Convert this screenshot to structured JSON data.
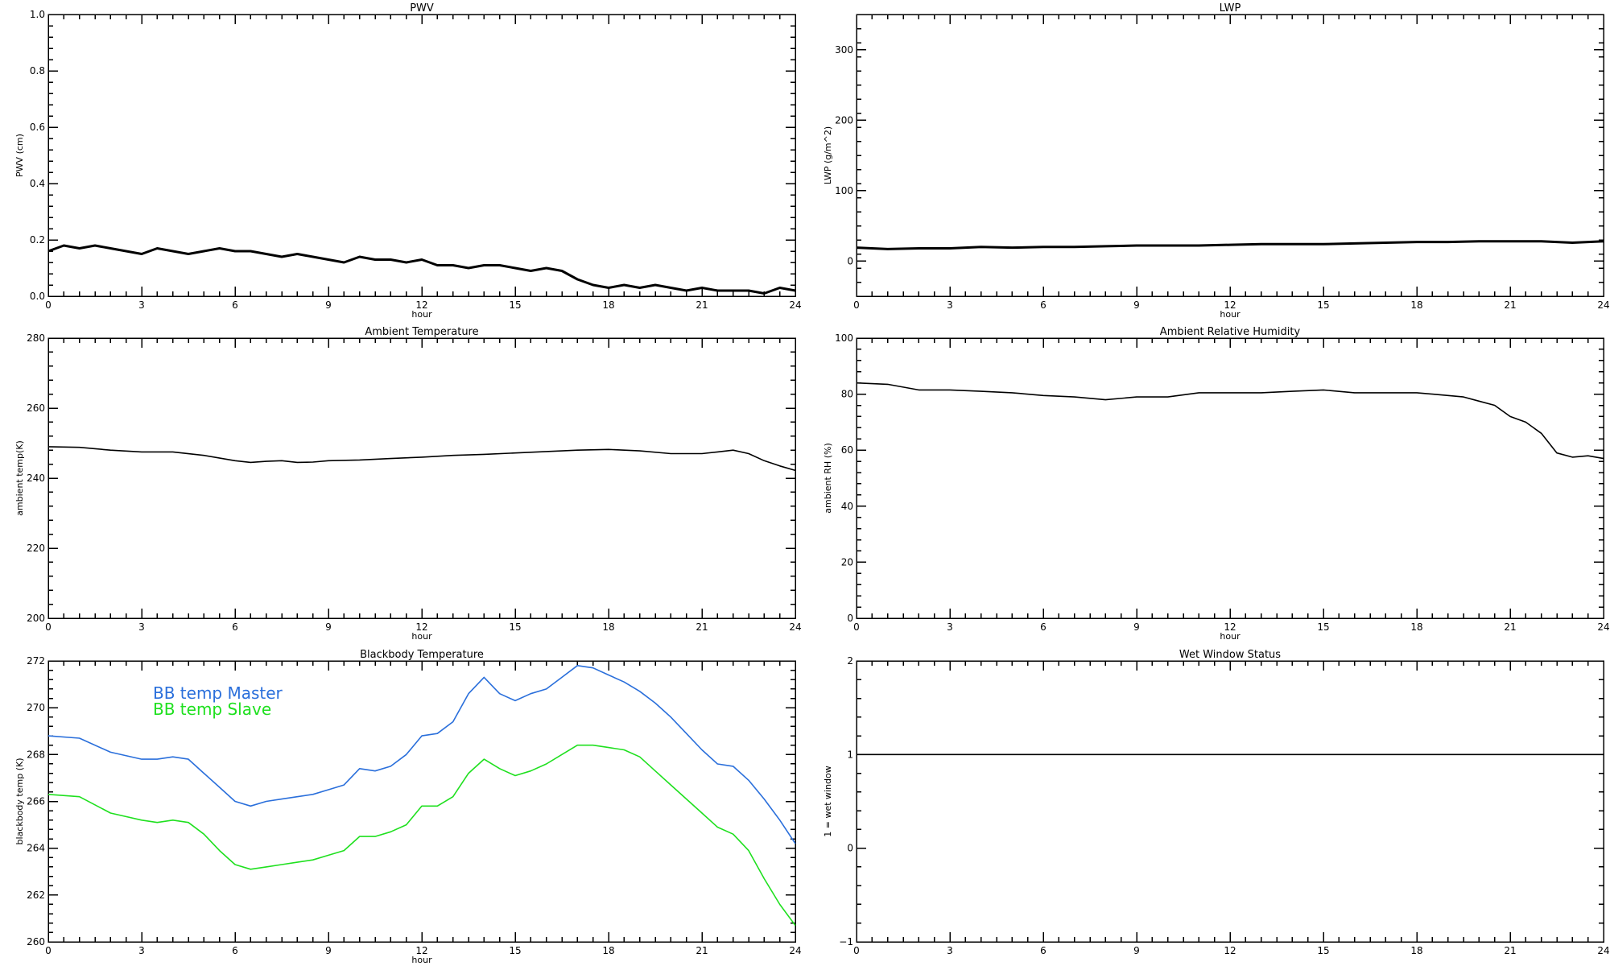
{
  "chart_data": [
    {
      "type": "line",
      "title": "PWV",
      "xlabel": "hour",
      "ylabel": "PWV (cm)",
      "xlim": [
        0,
        24
      ],
      "ylim": [
        0,
        1.0
      ],
      "xticks": [
        "0",
        "3",
        "6",
        "9",
        "12",
        "15",
        "18",
        "21",
        "24"
      ],
      "yticks": [
        "0.0",
        "0.2",
        "0.4",
        "0.6",
        "0.8",
        "1.0"
      ],
      "series": [
        {
          "color": "#000000",
          "x": [
            0,
            0.5,
            1,
            1.5,
            2,
            2.5,
            3,
            3.5,
            4,
            4.5,
            5,
            5.5,
            6,
            6.5,
            7,
            7.5,
            8,
            8.5,
            9,
            9.5,
            10,
            10.5,
            11,
            11.5,
            12,
            12.5,
            13,
            13.5,
            14,
            14.5,
            15,
            15.5,
            16,
            16.5,
            17,
            17.5,
            18,
            18.5,
            19,
            19.5,
            20,
            20.5,
            21,
            21.5,
            22,
            22.5,
            23,
            23.5,
            24
          ],
          "y": [
            0.16,
            0.18,
            0.17,
            0.18,
            0.17,
            0.16,
            0.15,
            0.17,
            0.16,
            0.15,
            0.16,
            0.17,
            0.16,
            0.16,
            0.15,
            0.14,
            0.15,
            0.14,
            0.13,
            0.12,
            0.14,
            0.13,
            0.13,
            0.12,
            0.13,
            0.11,
            0.11,
            0.1,
            0.11,
            0.11,
            0.1,
            0.09,
            0.1,
            0.09,
            0.06,
            0.04,
            0.03,
            0.04,
            0.03,
            0.04,
            0.03,
            0.02,
            0.03,
            0.02,
            0.02,
            0.02,
            0.01,
            0.03,
            0.02
          ]
        }
      ]
    },
    {
      "type": "line",
      "title": "LWP",
      "xlabel": "hour",
      "ylabel": "LWP (g/m^2)",
      "xlim": [
        0,
        24
      ],
      "ylim": [
        -50,
        350
      ],
      "xticks": [
        "0",
        "3",
        "6",
        "9",
        "12",
        "15",
        "18",
        "21",
        "24"
      ],
      "yticks": [
        "0",
        "100",
        "200",
        "300"
      ],
      "series": [
        {
          "color": "#000000",
          "x": [
            0,
            1,
            2,
            3,
            4,
            5,
            6,
            7,
            8,
            9,
            10,
            11,
            12,
            13,
            14,
            15,
            16,
            17,
            18,
            19,
            20,
            21,
            22,
            23,
            24
          ],
          "y": [
            19,
            17,
            18,
            18,
            20,
            19,
            20,
            20,
            21,
            22,
            22,
            22,
            23,
            24,
            24,
            24,
            25,
            26,
            27,
            27,
            28,
            28,
            28,
            26,
            28
          ]
        }
      ]
    },
    {
      "type": "line",
      "title": "Ambient Temperature",
      "xlabel": "hour",
      "ylabel": "ambient temp(K)",
      "xlim": [
        0,
        24
      ],
      "ylim": [
        200,
        280
      ],
      "xticks": [
        "0",
        "3",
        "6",
        "9",
        "12",
        "15",
        "18",
        "21",
        "24"
      ],
      "yticks": [
        "200",
        "220",
        "240",
        "260",
        "280"
      ],
      "series": [
        {
          "color": "#000000",
          "x": [
            0,
            1,
            2,
            3,
            4,
            5,
            6,
            6.5,
            7,
            7.5,
            8,
            8.5,
            9,
            10,
            11,
            12,
            13,
            14,
            15,
            16,
            17,
            18,
            19,
            20,
            21,
            21.5,
            22,
            22.5,
            23,
            23.5,
            24
          ],
          "y": [
            249,
            248.8,
            248,
            247.5,
            247.5,
            246.5,
            245,
            244.5,
            244.8,
            245,
            244.5,
            244.6,
            245,
            245.2,
            245.6,
            246,
            246.5,
            246.8,
            247.2,
            247.6,
            248,
            248.2,
            247.8,
            247,
            247,
            247.5,
            248,
            247,
            245,
            243.5,
            242.2
          ]
        }
      ]
    },
    {
      "type": "line",
      "title": "Ambient Relative Humidity",
      "xlabel": "hour",
      "ylabel": "ambient RH (%)",
      "xlim": [
        0,
        24
      ],
      "ylim": [
        0,
        100
      ],
      "xticks": [
        "0",
        "3",
        "6",
        "9",
        "12",
        "15",
        "18",
        "21",
        "24"
      ],
      "yticks": [
        "0",
        "20",
        "40",
        "60",
        "80",
        "100"
      ],
      "series": [
        {
          "color": "#000000",
          "x": [
            0,
            1,
            2,
            3,
            4,
            5,
            6,
            7,
            8,
            9,
            10,
            11,
            12,
            13,
            14,
            15,
            16,
            17,
            17.5,
            18,
            18.5,
            19,
            19.5,
            20,
            20.5,
            21,
            21.5,
            22,
            22.5,
            23,
            23.5,
            24
          ],
          "y": [
            84,
            83.5,
            81.5,
            81.5,
            81,
            80.5,
            79.5,
            79,
            78,
            79,
            79,
            80.5,
            80.5,
            80.5,
            81,
            81.5,
            80.5,
            80.5,
            80.5,
            80.5,
            80,
            79.5,
            79,
            77.5,
            76,
            72,
            70,
            66,
            59,
            57.5,
            58,
            57
          ]
        }
      ]
    },
    {
      "type": "line",
      "title": "Blackbody Temperature",
      "xlabel": "hour",
      "ylabel": "blackbody temp (K)",
      "xlim": [
        0,
        24
      ],
      "ylim": [
        260,
        272
      ],
      "xticks": [
        "0",
        "3",
        "6",
        "9",
        "12",
        "15",
        "18",
        "21",
        "24"
      ],
      "yticks": [
        "260",
        "262",
        "264",
        "266",
        "268",
        "270",
        "272"
      ],
      "series": [
        {
          "name": "BB temp Master",
          "color": "#2a6fdb",
          "x": [
            0,
            1,
            2,
            3,
            3.5,
            4,
            4.5,
            5,
            5.5,
            6,
            6.5,
            7,
            7.5,
            8,
            8.5,
            9,
            9.5,
            10,
            10.5,
            11,
            11.5,
            12,
            12.5,
            13,
            13.5,
            14,
            14.5,
            15,
            15.5,
            16,
            16.5,
            17,
            17.5,
            18,
            18.5,
            19,
            19.5,
            20,
            20.5,
            21,
            21.5,
            22,
            22.5,
            23,
            23.5,
            24
          ],
          "y": [
            268.8,
            268.7,
            268.1,
            267.8,
            267.8,
            267.9,
            267.8,
            267.2,
            266.6,
            266.0,
            265.8,
            266.0,
            266.1,
            266.2,
            266.3,
            266.5,
            266.7,
            267.4,
            267.3,
            267.5,
            268.0,
            268.8,
            268.9,
            269.4,
            270.6,
            271.3,
            270.6,
            270.3,
            270.6,
            270.8,
            271.3,
            271.8,
            271.7,
            271.4,
            271.1,
            270.7,
            270.2,
            269.6,
            268.9,
            268.2,
            267.6,
            267.5,
            266.9,
            266.1,
            265.2,
            264.2
          ]
        },
        {
          "name": "BB temp Slave",
          "color": "#1fe01f",
          "x": [
            0,
            1,
            2,
            3,
            3.5,
            4,
            4.5,
            5,
            5.5,
            6,
            6.5,
            7,
            7.5,
            8,
            8.5,
            9,
            9.5,
            10,
            10.5,
            11,
            11.5,
            12,
            12.5,
            13,
            13.5,
            14,
            14.5,
            15,
            15.5,
            16,
            16.5,
            17,
            17.5,
            18,
            18.5,
            19,
            19.5,
            20,
            20.5,
            21,
            21.5,
            22,
            22.5,
            23,
            23.5,
            24
          ],
          "y": [
            266.3,
            266.2,
            265.5,
            265.2,
            265.1,
            265.2,
            265.1,
            264.6,
            263.9,
            263.3,
            263.1,
            263.2,
            263.3,
            263.4,
            263.5,
            263.7,
            263.9,
            264.5,
            264.5,
            264.7,
            265.0,
            265.8,
            265.8,
            266.2,
            267.2,
            267.8,
            267.4,
            267.1,
            267.3,
            267.6,
            268.0,
            268.4,
            268.4,
            268.3,
            268.2,
            267.9,
            267.3,
            266.7,
            266.1,
            265.5,
            264.9,
            264.6,
            263.9,
            262.7,
            261.6,
            260.7
          ]
        }
      ]
    },
    {
      "type": "line",
      "title": "Wet Window Status",
      "xlabel": "",
      "ylabel": "1 = wet window",
      "xlim": [
        0,
        24
      ],
      "ylim": [
        -1,
        2
      ],
      "xticks": [
        "0",
        "3",
        "6",
        "9",
        "12",
        "15",
        "18",
        "21",
        "24"
      ],
      "yticks": [
        "−1",
        "0",
        "1",
        "2"
      ],
      "series": [
        {
          "color": "#000000",
          "x": [
            0,
            24
          ],
          "y": [
            1,
            1
          ]
        }
      ]
    }
  ]
}
